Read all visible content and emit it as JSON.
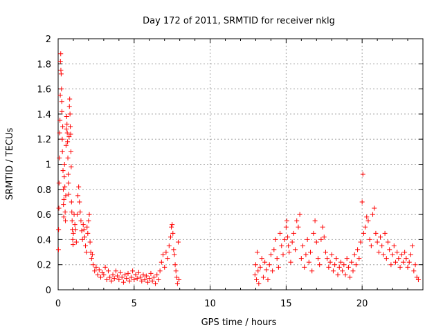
{
  "chart_data": {
    "type": "scatter",
    "title": "Day 172 of 2011, SRMTID for receiver nklg",
    "xlabel": "GPS time / hours",
    "ylabel": "SRMTID / TECUs",
    "xlim": [
      0,
      24
    ],
    "ylim": [
      0,
      2
    ],
    "xticks": [
      0,
      5,
      10,
      15,
      20
    ],
    "yticks": [
      0,
      0.2,
      0.4,
      0.6,
      0.8,
      1,
      1.2,
      1.4,
      1.6,
      1.8,
      2
    ],
    "xtick_labels": [
      "0",
      "5",
      "10",
      "15",
      "20"
    ],
    "ytick_labels": [
      "0",
      "0.2",
      "0.4",
      "0.6",
      "0.8",
      "1",
      "1.2",
      "1.4",
      "1.6",
      "1.8",
      "2"
    ],
    "grid": true,
    "marker": "+",
    "color": "#ff0000",
    "series": [
      {
        "name": "SRMTID",
        "points": [
          [
            0.02,
            0.32
          ],
          [
            0.03,
            0.48
          ],
          [
            0.05,
            0.65
          ],
          [
            0.06,
            0.85
          ],
          [
            0.08,
            1.05
          ],
          [
            0.1,
            1.25
          ],
          [
            0.12,
            1.35
          ],
          [
            0.14,
            1.55
          ],
          [
            0.15,
            1.82
          ],
          [
            0.17,
            1.88
          ],
          [
            0.18,
            1.75
          ],
          [
            0.2,
            1.72
          ],
          [
            0.22,
            1.6
          ],
          [
            0.24,
            1.5
          ],
          [
            0.25,
            1.42
          ],
          [
            0.27,
            1.2
          ],
          [
            0.28,
            1.1
          ],
          [
            0.3,
            1.3
          ],
          [
            0.32,
            0.95
          ],
          [
            0.34,
            0.8
          ],
          [
            0.35,
            0.68
          ],
          [
            0.37,
            0.58
          ],
          [
            0.38,
            0.72
          ],
          [
            0.4,
            0.9
          ],
          [
            0.42,
            1.0
          ],
          [
            0.44,
            0.82
          ],
          [
            0.46,
            0.62
          ],
          [
            0.48,
            0.55
          ],
          [
            0.5,
            0.75
          ],
          [
            0.52,
            1.15
          ],
          [
            0.54,
            1.28
          ],
          [
            0.56,
            1.38
          ],
          [
            0.58,
            1.32
          ],
          [
            0.6,
            1.25
          ],
          [
            0.62,
            1.18
          ],
          [
            0.64,
            1.05
          ],
          [
            0.66,
            0.92
          ],
          [
            0.68,
            0.85
          ],
          [
            0.7,
            0.76
          ],
          [
            0.72,
            1.22
          ],
          [
            0.74,
            1.46
          ],
          [
            0.76,
            1.52
          ],
          [
            0.78,
            1.4
          ],
          [
            0.8,
            1.3
          ],
          [
            0.82,
            1.24
          ],
          [
            0.84,
            1.1
          ],
          [
            0.86,
            0.98
          ],
          [
            0.88,
            0.7
          ],
          [
            0.9,
            0.62
          ],
          [
            0.92,
            0.55
          ],
          [
            0.94,
            0.48
          ],
          [
            0.96,
            0.4
          ],
          [
            0.98,
            0.36
          ],
          [
            1.0,
            0.45
          ],
          [
            1.05,
            0.6
          ],
          [
            1.1,
            0.52
          ],
          [
            1.15,
            0.48
          ],
          [
            1.2,
            0.38
          ],
          [
            1.25,
            0.6
          ],
          [
            1.3,
            0.75
          ],
          [
            1.35,
            0.82
          ],
          [
            1.4,
            0.7
          ],
          [
            1.45,
            0.62
          ],
          [
            1.5,
            0.55
          ],
          [
            1.55,
            0.47
          ],
          [
            1.6,
            0.4
          ],
          [
            1.65,
            0.52
          ],
          [
            1.7,
            0.48
          ],
          [
            1.75,
            0.42
          ],
          [
            1.8,
            0.35
          ],
          [
            1.85,
            0.3
          ],
          [
            1.9,
            0.5
          ],
          [
            1.95,
            0.45
          ],
          [
            2.0,
            0.55
          ],
          [
            2.05,
            0.6
          ],
          [
            2.1,
            0.38
          ],
          [
            2.15,
            0.3
          ],
          [
            2.2,
            0.25
          ],
          [
            2.25,
            0.28
          ],
          [
            2.3,
            0.2
          ],
          [
            2.4,
            0.15
          ],
          [
            2.5,
            0.18
          ],
          [
            2.6,
            0.12
          ],
          [
            2.7,
            0.16
          ],
          [
            2.8,
            0.1
          ],
          [
            2.9,
            0.14
          ],
          [
            3.0,
            0.12
          ],
          [
            3.1,
            0.18
          ],
          [
            3.2,
            0.08
          ],
          [
            3.3,
            0.15
          ],
          [
            3.4,
            0.1
          ],
          [
            3.5,
            0.07
          ],
          [
            3.6,
            0.12
          ],
          [
            3.7,
            0.09
          ],
          [
            3.8,
            0.15
          ],
          [
            3.9,
            0.11
          ],
          [
            4.0,
            0.08
          ],
          [
            4.1,
            0.14
          ],
          [
            4.2,
            0.1
          ],
          [
            4.3,
            0.06
          ],
          [
            4.4,
            0.12
          ],
          [
            4.5,
            0.09
          ],
          [
            4.6,
            0.13
          ],
          [
            4.7,
            0.07
          ],
          [
            4.8,
            0.1
          ],
          [
            4.9,
            0.15
          ],
          [
            5.0,
            0.08
          ],
          [
            5.1,
            0.12
          ],
          [
            5.2,
            0.09
          ],
          [
            5.3,
            0.14
          ],
          [
            5.4,
            0.1
          ],
          [
            5.5,
            0.07
          ],
          [
            5.6,
            0.12
          ],
          [
            5.7,
            0.08
          ],
          [
            5.8,
            0.11
          ],
          [
            5.9,
            0.06
          ],
          [
            6.0,
            0.09
          ],
          [
            6.1,
            0.13
          ],
          [
            6.2,
            0.07
          ],
          [
            6.3,
            0.1
          ],
          [
            6.4,
            0.05
          ],
          [
            6.5,
            0.12
          ],
          [
            6.6,
            0.08
          ],
          [
            6.7,
            0.15
          ],
          [
            6.8,
            0.22
          ],
          [
            6.9,
            0.28
          ],
          [
            7.0,
            0.18
          ],
          [
            7.1,
            0.3
          ],
          [
            7.2,
            0.25
          ],
          [
            7.3,
            0.35
          ],
          [
            7.4,
            0.42
          ],
          [
            7.45,
            0.5
          ],
          [
            7.5,
            0.52
          ],
          [
            7.55,
            0.45
          ],
          [
            7.6,
            0.32
          ],
          [
            7.65,
            0.28
          ],
          [
            7.7,
            0.2
          ],
          [
            7.75,
            0.15
          ],
          [
            7.8,
            0.1
          ],
          [
            7.85,
            0.05
          ],
          [
            7.9,
            0.38
          ],
          [
            7.95,
            0.08
          ],
          [
            12.95,
            0.12
          ],
          [
            13.0,
            0.2
          ],
          [
            13.05,
            0.08
          ],
          [
            13.1,
            0.3
          ],
          [
            13.15,
            0.15
          ],
          [
            13.2,
            0.05
          ],
          [
            13.3,
            0.18
          ],
          [
            13.4,
            0.25
          ],
          [
            13.5,
            0.1
          ],
          [
            13.6,
            0.22
          ],
          [
            13.7,
            0.16
          ],
          [
            13.8,
            0.08
          ],
          [
            13.9,
            0.2
          ],
          [
            14.0,
            0.28
          ],
          [
            14.1,
            0.15
          ],
          [
            14.2,
            0.32
          ],
          [
            14.3,
            0.4
          ],
          [
            14.4,
            0.25
          ],
          [
            14.5,
            0.18
          ],
          [
            14.6,
            0.45
          ],
          [
            14.7,
            0.35
          ],
          [
            14.8,
            0.28
          ],
          [
            14.9,
            0.4
          ],
          [
            15.0,
            0.5
          ],
          [
            15.05,
            0.55
          ],
          [
            15.1,
            0.42
          ],
          [
            15.15,
            0.35
          ],
          [
            15.2,
            0.3
          ],
          [
            15.3,
            0.22
          ],
          [
            15.4,
            0.38
          ],
          [
            15.5,
            0.45
          ],
          [
            15.6,
            0.32
          ],
          [
            15.7,
            0.55
          ],
          [
            15.8,
            0.5
          ],
          [
            15.9,
            0.6
          ],
          [
            16.0,
            0.25
          ],
          [
            16.1,
            0.35
          ],
          [
            16.2,
            0.18
          ],
          [
            16.3,
            0.28
          ],
          [
            16.4,
            0.4
          ],
          [
            16.5,
            0.22
          ],
          [
            16.6,
            0.3
          ],
          [
            16.7,
            0.15
          ],
          [
            16.8,
            0.45
          ],
          [
            16.9,
            0.55
          ],
          [
            17.0,
            0.38
          ],
          [
            17.1,
            0.25
          ],
          [
            17.2,
            0.2
          ],
          [
            17.3,
            0.4
          ],
          [
            17.4,
            0.5
          ],
          [
            17.5,
            0.42
          ],
          [
            17.6,
            0.3
          ],
          [
            17.7,
            0.25
          ],
          [
            17.8,
            0.18
          ],
          [
            17.9,
            0.22
          ],
          [
            18.0,
            0.28
          ],
          [
            18.1,
            0.15
          ],
          [
            18.2,
            0.2
          ],
          [
            18.3,
            0.25
          ],
          [
            18.4,
            0.12
          ],
          [
            18.5,
            0.18
          ],
          [
            18.6,
            0.22
          ],
          [
            18.7,
            0.15
          ],
          [
            18.8,
            0.2
          ],
          [
            18.9,
            0.12
          ],
          [
            19.0,
            0.25
          ],
          [
            19.1,
            0.18
          ],
          [
            19.2,
            0.1
          ],
          [
            19.3,
            0.22
          ],
          [
            19.4,
            0.15
          ],
          [
            19.5,
            0.28
          ],
          [
            19.6,
            0.2
          ],
          [
            19.7,
            0.32
          ],
          [
            19.8,
            0.25
          ],
          [
            19.9,
            0.38
          ],
          [
            20.0,
            0.7
          ],
          [
            20.05,
            0.92
          ],
          [
            20.1,
            0.45
          ],
          [
            20.2,
            0.5
          ],
          [
            20.3,
            0.58
          ],
          [
            20.4,
            0.55
          ],
          [
            20.5,
            0.4
          ],
          [
            20.6,
            0.35
          ],
          [
            20.7,
            0.6
          ],
          [
            20.8,
            0.65
          ],
          [
            20.9,
            0.45
          ],
          [
            21.0,
            0.38
          ],
          [
            21.1,
            0.3
          ],
          [
            21.2,
            0.42
          ],
          [
            21.3,
            0.35
          ],
          [
            21.4,
            0.28
          ],
          [
            21.5,
            0.45
          ],
          [
            21.6,
            0.25
          ],
          [
            21.7,
            0.38
          ],
          [
            21.8,
            0.32
          ],
          [
            21.9,
            0.2
          ],
          [
            22.0,
            0.28
          ],
          [
            22.1,
            0.35
          ],
          [
            22.2,
            0.22
          ],
          [
            22.3,
            0.3
          ],
          [
            22.4,
            0.25
          ],
          [
            22.5,
            0.18
          ],
          [
            22.6,
            0.28
          ],
          [
            22.7,
            0.22
          ],
          [
            22.8,
            0.3
          ],
          [
            22.9,
            0.25
          ],
          [
            23.0,
            0.18
          ],
          [
            23.1,
            0.22
          ],
          [
            23.2,
            0.28
          ],
          [
            23.3,
            0.35
          ],
          [
            23.4,
            0.15
          ],
          [
            23.5,
            0.2
          ],
          [
            23.6,
            0.1
          ],
          [
            23.7,
            0.08
          ]
        ]
      }
    ]
  }
}
